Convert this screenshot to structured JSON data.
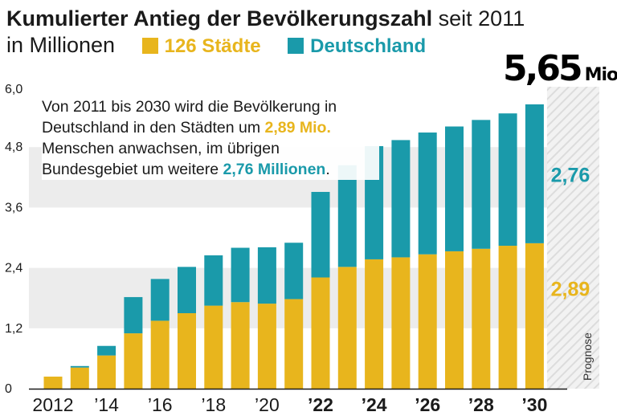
{
  "title": {
    "bold": "Kumulierter Antieg der Bevölkerungszahl",
    "light": "seit 2011",
    "subtitle": "in Millionen"
  },
  "legend": [
    {
      "label": "126 Städte",
      "color": "#e8b51d"
    },
    {
      "label": "Deutschland",
      "color": "#1a9aaa"
    }
  ],
  "note": {
    "part1": "Von 2011 bis 2030 wird die Bevölkerung in Deutschland in den Städten um ",
    "highlight1": "2,89 Mio.",
    "part2": " Menschen anwachsen, im übrigen Bundesgebiet um weitere ",
    "highlight2": "2,76 Millionen",
    "part3": "."
  },
  "total": {
    "value": "5,65",
    "unit": "Mio."
  },
  "chart_data": {
    "type": "bar",
    "stacked": true,
    "categories": [
      "2012",
      "2013",
      "2014",
      "2015",
      "2016",
      "2017",
      "2018",
      "2019",
      "2020",
      "2021",
      "2022",
      "2023",
      "2024",
      "2025",
      "2026",
      "2027",
      "2028",
      "2029",
      "2030"
    ],
    "tick_labels": [
      "2012",
      "",
      "’14",
      "",
      "’16",
      "",
      "’18",
      "",
      "’20",
      "",
      "’22",
      "",
      "’24",
      "",
      "’26",
      "",
      "’28",
      "",
      "’30"
    ],
    "bold_from_index": 10,
    "series": [
      {
        "name": "126 Städte",
        "color": "#e8b51d",
        "values": [
          0.24,
          0.42,
          0.66,
          1.1,
          1.35,
          1.5,
          1.65,
          1.72,
          1.69,
          1.78,
          2.21,
          2.42,
          2.57,
          2.61,
          2.67,
          2.73,
          2.78,
          2.84,
          2.89
        ]
      },
      {
        "name": "Deutschland",
        "color": "#1a9aaa",
        "values": [
          0.0,
          0.03,
          0.19,
          0.72,
          0.83,
          0.92,
          1.0,
          1.08,
          1.12,
          1.12,
          1.7,
          2.02,
          2.25,
          2.33,
          2.42,
          2.48,
          2.56,
          2.63,
          2.76
        ]
      }
    ],
    "ylim": [
      0,
      6.0
    ],
    "yticks": [
      0,
      1.2,
      2.4,
      3.6,
      4.8,
      6.0
    ],
    "ytick_labels": [
      "0",
      "1,2",
      "2,4",
      "3,6",
      "4,8",
      "6,0"
    ],
    "end_labels": [
      {
        "text": "2,76",
        "color": "#1a9aaa",
        "series": "Deutschland"
      },
      {
        "text": "2,89",
        "color": "#e8b51d",
        "series": "126 Städte"
      }
    ],
    "forecast_label": "Prognose",
    "grid_bands": true
  }
}
